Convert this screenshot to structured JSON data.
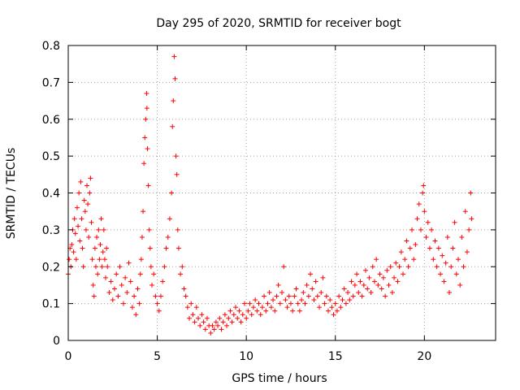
{
  "chart_data": {
    "type": "scatter",
    "title": "Day 295 of 2020, SRMTID for receiver bogt",
    "xlabel": "GPS time / hours",
    "ylabel": "SRMTID / TECUs",
    "xlim": [
      0,
      24
    ],
    "ylim": [
      0,
      0.8
    ],
    "xticks": [
      0,
      5,
      10,
      15,
      20
    ],
    "xtick_labels": [
      "0",
      "5",
      "10",
      "15",
      "20"
    ],
    "yticks": [
      0,
      0.1,
      0.2,
      0.3,
      0.4,
      0.5,
      0.6,
      0.7,
      0.8
    ],
    "ytick_labels": [
      "0",
      "0.1",
      "0.2",
      "0.3",
      "0.4",
      "0.5",
      "0.6",
      "0.7",
      "0.8"
    ],
    "grid": true,
    "marker": "+",
    "color": "#ff0000",
    "series": [
      {
        "name": "SRMTID",
        "points": [
          [
            0.0,
            0.18
          ],
          [
            0.05,
            0.22
          ],
          [
            0.1,
            0.25
          ],
          [
            0.15,
            0.2
          ],
          [
            0.2,
            0.26
          ],
          [
            0.25,
            0.3
          ],
          [
            0.3,
            0.24
          ],
          [
            0.35,
            0.33
          ],
          [
            0.4,
            0.29
          ],
          [
            0.45,
            0.22
          ],
          [
            0.5,
            0.36
          ],
          [
            0.55,
            0.31
          ],
          [
            0.6,
            0.4
          ],
          [
            0.65,
            0.27
          ],
          [
            0.7,
            0.43
          ],
          [
            0.75,
            0.33
          ],
          [
            0.8,
            0.25
          ],
          [
            0.85,
            0.2
          ],
          [
            0.9,
            0.38
          ],
          [
            0.95,
            0.35
          ],
          [
            1.0,
            0.3
          ],
          [
            1.05,
            0.42
          ],
          [
            1.1,
            0.37
          ],
          [
            1.15,
            0.28
          ],
          [
            1.2,
            0.4
          ],
          [
            1.25,
            0.44
          ],
          [
            1.3,
            0.32
          ],
          [
            1.35,
            0.22
          ],
          [
            1.4,
            0.15
          ],
          [
            1.45,
            0.12
          ],
          [
            1.5,
            0.25
          ],
          [
            1.55,
            0.2
          ],
          [
            1.6,
            0.28
          ],
          [
            1.65,
            0.18
          ],
          [
            1.7,
            0.3
          ],
          [
            1.75,
            0.22
          ],
          [
            1.8,
            0.26
          ],
          [
            1.85,
            0.33
          ],
          [
            1.9,
            0.2
          ],
          [
            1.95,
            0.24
          ],
          [
            2.0,
            0.3
          ],
          [
            2.05,
            0.22
          ],
          [
            2.1,
            0.17
          ],
          [
            2.15,
            0.25
          ],
          [
            2.2,
            0.2
          ],
          [
            2.3,
            0.13
          ],
          [
            2.4,
            0.16
          ],
          [
            2.5,
            0.11
          ],
          [
            2.6,
            0.14
          ],
          [
            2.7,
            0.18
          ],
          [
            2.8,
            0.12
          ],
          [
            2.9,
            0.2
          ],
          [
            3.0,
            0.15
          ],
          [
            3.1,
            0.1
          ],
          [
            3.2,
            0.17
          ],
          [
            3.3,
            0.13
          ],
          [
            3.4,
            0.21
          ],
          [
            3.5,
            0.16
          ],
          [
            3.6,
            0.09
          ],
          [
            3.7,
            0.12
          ],
          [
            3.8,
            0.07
          ],
          [
            3.9,
            0.14
          ],
          [
            4.0,
            0.1
          ],
          [
            4.05,
            0.18
          ],
          [
            4.1,
            0.22
          ],
          [
            4.15,
            0.28
          ],
          [
            4.2,
            0.35
          ],
          [
            4.25,
            0.48
          ],
          [
            4.3,
            0.55
          ],
          [
            4.35,
            0.6
          ],
          [
            4.4,
            0.67
          ],
          [
            4.42,
            0.63
          ],
          [
            4.45,
            0.52
          ],
          [
            4.5,
            0.42
          ],
          [
            4.55,
            0.3
          ],
          [
            4.6,
            0.25
          ],
          [
            4.65,
            0.2
          ],
          [
            4.7,
            0.15
          ],
          [
            4.8,
            0.18
          ],
          [
            4.9,
            0.12
          ],
          [
            5.0,
            0.1
          ],
          [
            5.1,
            0.08
          ],
          [
            5.2,
            0.12
          ],
          [
            5.3,
            0.16
          ],
          [
            5.4,
            0.2
          ],
          [
            5.5,
            0.25
          ],
          [
            5.6,
            0.28
          ],
          [
            5.7,
            0.33
          ],
          [
            5.8,
            0.4
          ],
          [
            5.85,
            0.58
          ],
          [
            5.9,
            0.65
          ],
          [
            5.95,
            0.77
          ],
          [
            6.0,
            0.71
          ],
          [
            6.05,
            0.5
          ],
          [
            6.1,
            0.45
          ],
          [
            6.15,
            0.3
          ],
          [
            6.2,
            0.25
          ],
          [
            6.3,
            0.18
          ],
          [
            6.4,
            0.2
          ],
          [
            6.5,
            0.14
          ],
          [
            6.6,
            0.12
          ],
          [
            6.7,
            0.09
          ],
          [
            6.8,
            0.06
          ],
          [
            6.9,
            0.1
          ],
          [
            7.0,
            0.07
          ],
          [
            7.1,
            0.05
          ],
          [
            7.2,
            0.09
          ],
          [
            7.3,
            0.06
          ],
          [
            7.4,
            0.04
          ],
          [
            7.5,
            0.07
          ],
          [
            7.6,
            0.05
          ],
          [
            7.7,
            0.03
          ],
          [
            7.8,
            0.06
          ],
          [
            7.9,
            0.04
          ],
          [
            8.0,
            0.02
          ],
          [
            8.1,
            0.04
          ],
          [
            8.2,
            0.03
          ],
          [
            8.3,
            0.05
          ],
          [
            8.4,
            0.04
          ],
          [
            8.5,
            0.06
          ],
          [
            8.6,
            0.03
          ],
          [
            8.7,
            0.05
          ],
          [
            8.8,
            0.07
          ],
          [
            8.9,
            0.04
          ],
          [
            9.0,
            0.06
          ],
          [
            9.1,
            0.08
          ],
          [
            9.2,
            0.05
          ],
          [
            9.3,
            0.07
          ],
          [
            9.4,
            0.09
          ],
          [
            9.5,
            0.06
          ],
          [
            9.6,
            0.08
          ],
          [
            9.7,
            0.05
          ],
          [
            9.8,
            0.07
          ],
          [
            9.9,
            0.1
          ],
          [
            10.0,
            0.06
          ],
          [
            10.1,
            0.08
          ],
          [
            10.2,
            0.1
          ],
          [
            10.3,
            0.07
          ],
          [
            10.4,
            0.09
          ],
          [
            10.5,
            0.11
          ],
          [
            10.6,
            0.08
          ],
          [
            10.7,
            0.1
          ],
          [
            10.8,
            0.07
          ],
          [
            10.9,
            0.09
          ],
          [
            11.0,
            0.12
          ],
          [
            11.1,
            0.08
          ],
          [
            11.2,
            0.1
          ],
          [
            11.3,
            0.13
          ],
          [
            11.4,
            0.09
          ],
          [
            11.5,
            0.11
          ],
          [
            11.6,
            0.08
          ],
          [
            11.7,
            0.12
          ],
          [
            11.8,
            0.15
          ],
          [
            11.9,
            0.1
          ],
          [
            12.0,
            0.13
          ],
          [
            12.1,
            0.2
          ],
          [
            12.2,
            0.11
          ],
          [
            12.3,
            0.09
          ],
          [
            12.4,
            0.12
          ],
          [
            12.5,
            0.1
          ],
          [
            12.6,
            0.08
          ],
          [
            12.7,
            0.12
          ],
          [
            12.8,
            0.14
          ],
          [
            12.9,
            0.1
          ],
          [
            13.0,
            0.08
          ],
          [
            13.1,
            0.11
          ],
          [
            13.2,
            0.13
          ],
          [
            13.3,
            0.1
          ],
          [
            13.4,
            0.15
          ],
          [
            13.5,
            0.12
          ],
          [
            13.6,
            0.18
          ],
          [
            13.7,
            0.14
          ],
          [
            13.8,
            0.11
          ],
          [
            13.9,
            0.16
          ],
          [
            14.0,
            0.12
          ],
          [
            14.1,
            0.09
          ],
          [
            14.2,
            0.13
          ],
          [
            14.3,
            0.17
          ],
          [
            14.4,
            0.1
          ],
          [
            14.5,
            0.12
          ],
          [
            14.6,
            0.08
          ],
          [
            14.7,
            0.11
          ],
          [
            14.8,
            0.09
          ],
          [
            14.9,
            0.07
          ],
          [
            15.0,
            0.1
          ],
          [
            15.1,
            0.08
          ],
          [
            15.2,
            0.12
          ],
          [
            15.3,
            0.09
          ],
          [
            15.4,
            0.11
          ],
          [
            15.5,
            0.14
          ],
          [
            15.6,
            0.1
          ],
          [
            15.7,
            0.13
          ],
          [
            15.8,
            0.11
          ],
          [
            15.9,
            0.16
          ],
          [
            16.0,
            0.12
          ],
          [
            16.1,
            0.15
          ],
          [
            16.2,
            0.18
          ],
          [
            16.3,
            0.13
          ],
          [
            16.4,
            0.16
          ],
          [
            16.5,
            0.12
          ],
          [
            16.6,
            0.15
          ],
          [
            16.7,
            0.19
          ],
          [
            16.8,
            0.14
          ],
          [
            16.9,
            0.17
          ],
          [
            17.0,
            0.13
          ],
          [
            17.1,
            0.2
          ],
          [
            17.2,
            0.16
          ],
          [
            17.3,
            0.22
          ],
          [
            17.4,
            0.15
          ],
          [
            17.5,
            0.18
          ],
          [
            17.6,
            0.14
          ],
          [
            17.7,
            0.17
          ],
          [
            17.8,
            0.12
          ],
          [
            17.9,
            0.19
          ],
          [
            18.0,
            0.15
          ],
          [
            18.1,
            0.2
          ],
          [
            18.2,
            0.13
          ],
          [
            18.3,
            0.17
          ],
          [
            18.4,
            0.21
          ],
          [
            18.5,
            0.16
          ],
          [
            18.6,
            0.2
          ],
          [
            18.7,
            0.24
          ],
          [
            18.8,
            0.18
          ],
          [
            18.9,
            0.22
          ],
          [
            19.0,
            0.27
          ],
          [
            19.1,
            0.2
          ],
          [
            19.2,
            0.25
          ],
          [
            19.3,
            0.3
          ],
          [
            19.4,
            0.22
          ],
          [
            19.5,
            0.26
          ],
          [
            19.6,
            0.33
          ],
          [
            19.7,
            0.37
          ],
          [
            19.8,
            0.3
          ],
          [
            19.9,
            0.4
          ],
          [
            19.95,
            0.42
          ],
          [
            20.0,
            0.35
          ],
          [
            20.1,
            0.28
          ],
          [
            20.2,
            0.32
          ],
          [
            20.3,
            0.25
          ],
          [
            20.4,
            0.3
          ],
          [
            20.5,
            0.22
          ],
          [
            20.6,
            0.27
          ],
          [
            20.7,
            0.2
          ],
          [
            20.8,
            0.25
          ],
          [
            20.9,
            0.18
          ],
          [
            21.0,
            0.23
          ],
          [
            21.1,
            0.16
          ],
          [
            21.2,
            0.21
          ],
          [
            21.3,
            0.28
          ],
          [
            21.4,
            0.13
          ],
          [
            21.5,
            0.2
          ],
          [
            21.6,
            0.25
          ],
          [
            21.7,
            0.32
          ],
          [
            21.8,
            0.18
          ],
          [
            21.9,
            0.22
          ],
          [
            22.0,
            0.15
          ],
          [
            22.1,
            0.28
          ],
          [
            22.2,
            0.2
          ],
          [
            22.3,
            0.35
          ],
          [
            22.4,
            0.24
          ],
          [
            22.5,
            0.3
          ],
          [
            22.6,
            0.4
          ],
          [
            22.65,
            0.33
          ]
        ]
      }
    ]
  }
}
